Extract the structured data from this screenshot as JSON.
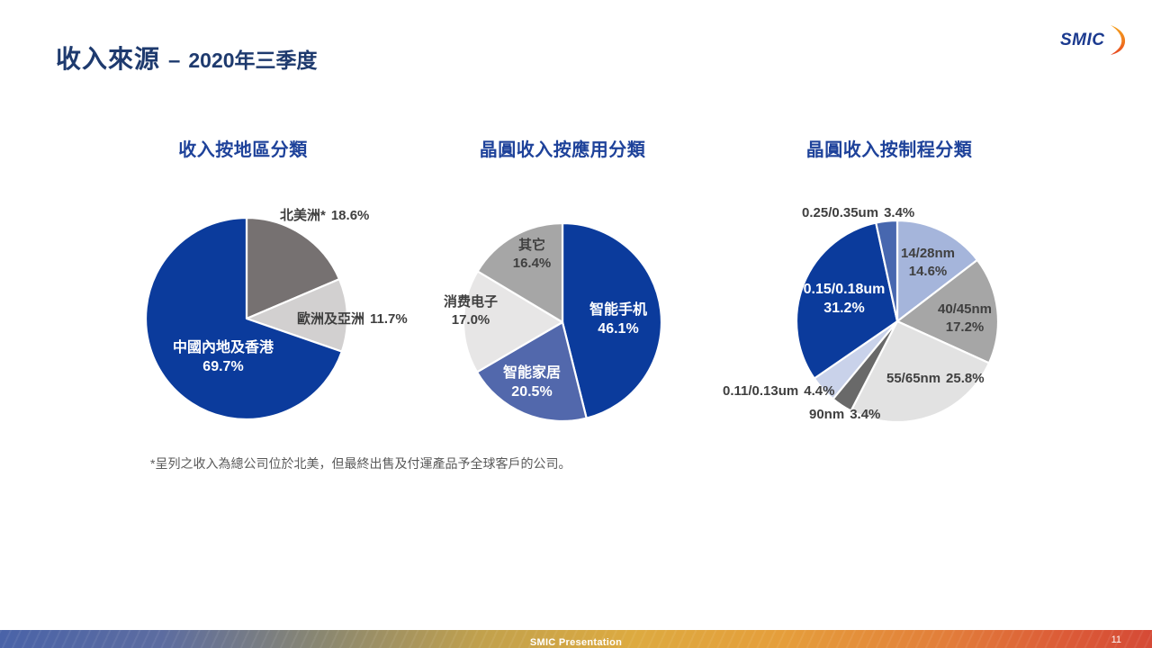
{
  "header": {
    "title_main": "收入來源",
    "title_dash": "–",
    "title_period": "2020年三季度",
    "logo_text": "SMIC"
  },
  "colors": {
    "brand_blue": "#0B3B9C",
    "chart_title_blue": "#1E429A",
    "header_navy": "#1E3A6E",
    "label_dark": "#3F3F3F",
    "footnote_gray": "#595959",
    "logo_swoosh_orange": "#F5A11C",
    "logo_swoosh_red": "#E8431F"
  },
  "chart_data": [
    {
      "type": "pie",
      "title": "收入按地區分類",
      "unit": "%",
      "start_angle_deg": 0,
      "direction": "clockwise",
      "slices": [
        {
          "label": "北美洲*",
          "pct": "18.6%",
          "value": 18.6,
          "color": "#767171"
        },
        {
          "label": "歐洲及亞洲",
          "pct": "11.7%",
          "value": 11.7,
          "color": "#D2D0D0"
        },
        {
          "label": "中國內地及香港",
          "pct": "69.7%",
          "value": 69.7,
          "color": "#0B3B9C"
        }
      ]
    },
    {
      "type": "pie",
      "title": "晶圓收入按應用分類",
      "unit": "%",
      "start_angle_deg": 0,
      "direction": "clockwise",
      "slices": [
        {
          "label": "智能手机",
          "pct": "46.1%",
          "value": 46.1,
          "color": "#0B3B9C"
        },
        {
          "label": "智能家居",
          "pct": "20.5%",
          "value": 20.5,
          "color": "#5268AC"
        },
        {
          "label": "消费电子",
          "pct": "17.0%",
          "value": 17.0,
          "color": "#E7E6E6"
        },
        {
          "label": "其它",
          "pct": "16.4%",
          "value": 16.4,
          "color": "#A6A6A6"
        }
      ]
    },
    {
      "type": "pie",
      "title": "晶圓收入按制程分類",
      "unit": "%",
      "start_angle_deg": 0,
      "direction": "clockwise",
      "slices": [
        {
          "label": "14/28nm",
          "pct": "14.6%",
          "value": 14.6,
          "color": "#A5B5DB"
        },
        {
          "label": "40/45nm",
          "pct": "17.2%",
          "value": 17.2,
          "color": "#A6A6A6"
        },
        {
          "label": "55/65nm",
          "pct": "25.8%",
          "value": 25.8,
          "color": "#E2E2E2"
        },
        {
          "label": "90nm",
          "pct": "3.4%",
          "value": 3.4,
          "color": "#696969"
        },
        {
          "label": "0.11/0.13um",
          "pct": "4.4%",
          "value": 4.4,
          "color": "#C9D2EA"
        },
        {
          "label": "0.15/0.18um",
          "pct": "31.2%",
          "value": 31.2,
          "color": "#0B3B9C"
        },
        {
          "label": "0.25/0.35um",
          "pct": "3.4%",
          "value": 3.4,
          "color": "#4767AF"
        }
      ]
    }
  ],
  "footnote": "*呈列之收入為總公司位於北美，但最終出售及付運產品予全球客戶的公司。",
  "footer": {
    "label": "SMIC Presentation",
    "page": "11"
  }
}
